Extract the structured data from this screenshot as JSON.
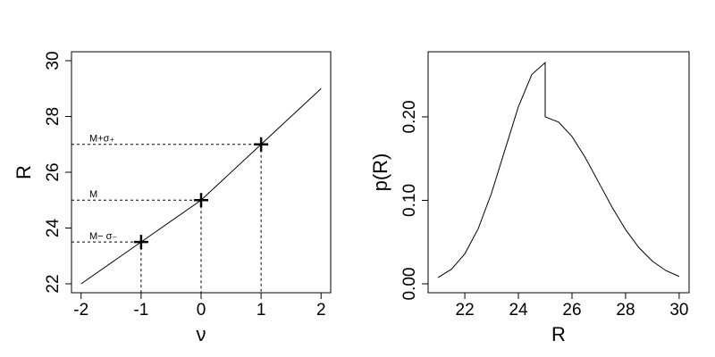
{
  "chart_data": [
    {
      "type": "line",
      "xlabel": "ν",
      "ylabel": "R",
      "x": [
        -2,
        -1,
        0,
        1,
        2
      ],
      "series": [
        {
          "color": "#000000",
          "values": [
            22,
            23.5,
            25,
            27,
            29
          ]
        }
      ],
      "points": {
        "x": [
          -1,
          0,
          1
        ],
        "y": [
          23.5,
          25,
          27
        ],
        "labels": [
          "M− σ₋",
          "M",
          "M+σ₊"
        ]
      },
      "xlim": [
        -2.16,
        2.16
      ],
      "ylim": [
        21.68,
        30.32
      ],
      "xticks": [
        -2,
        -1,
        0,
        1,
        2
      ],
      "yticks": [
        22,
        24,
        26,
        28,
        30
      ]
    },
    {
      "type": "line",
      "xlabel": "R",
      "ylabel": "p(R)",
      "x": [
        21,
        21.5,
        22,
        22.5,
        23,
        23.5,
        24,
        24.5,
        25,
        25,
        25.5,
        26,
        26.5,
        27,
        27.5,
        28,
        28.5,
        29,
        29.5,
        30
      ],
      "series": [
        {
          "color": "#000000",
          "values": [
            0.0075,
            0.0174,
            0.0359,
            0.0661,
            0.1089,
            0.1607,
            0.2122,
            0.2507,
            0.265,
            0.2,
            0.1938,
            0.1765,
            0.151,
            0.1213,
            0.0916,
            0.0649,
            0.0433,
            0.0271,
            0.0159,
            0.0088
          ]
        }
      ],
      "xlim": [
        20.63,
        30.37
      ],
      "ylim": [
        -0.0107,
        0.278
      ],
      "xticks": [
        22,
        24,
        26,
        28,
        30
      ],
      "yticks": [
        {
          "value": 0,
          "label": "0.00"
        },
        {
          "value": 0.1,
          "label": "0.10"
        },
        {
          "value": 0.2,
          "label": "0.20"
        }
      ]
    }
  ]
}
